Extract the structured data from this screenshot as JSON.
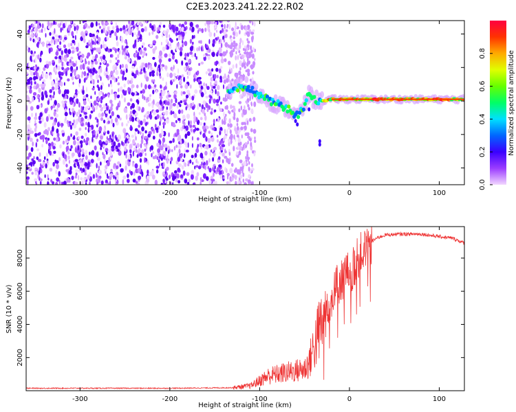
{
  "figure_title": "C2E3.2023.241.22.22.R02",
  "chart_data": [
    {
      "type": "heatmap",
      "title": "C2E3.2023.241.22.22.R02",
      "xlabel": "Height of straight line (km)",
      "ylabel": "Frequency (Hz)",
      "xlim": [
        -360,
        128
      ],
      "ylim": [
        -50,
        48
      ],
      "x_ticks": [
        -300,
        -200,
        -100,
        0,
        100
      ],
      "y_ticks": [
        -40,
        -20,
        0,
        20,
        40
      ],
      "noise_region": {
        "x_range": [
          -360,
          -120
        ],
        "y_range": [
          -50,
          48
        ]
      },
      "signal_trace": {
        "x": [
          -135,
          -125,
          -115,
          -105,
          -95,
          -85,
          -75,
          -65,
          -58,
          -50,
          -45,
          -40,
          -30,
          -20,
          -10,
          0,
          20,
          50,
          80,
          100,
          128
        ],
        "y": [
          6,
          8,
          9,
          5,
          2,
          -1,
          -3,
          -6,
          -9,
          -3,
          4,
          1,
          0,
          1,
          1,
          1,
          1,
          1,
          1,
          1,
          1
        ]
      },
      "colorbar": {
        "label": "Normalized spectral amplitude",
        "range": [
          0.0,
          1.0
        ],
        "ticks": [
          0.0,
          0.2,
          0.4,
          0.6,
          0.8
        ],
        "colors": [
          "#f2d6ff",
          "#9b3dff",
          "#3a00ff",
          "#0066ff",
          "#00e0ff",
          "#00ff66",
          "#66ff00",
          "#e0ff00",
          "#ffaa00",
          "#ff3300",
          "#ff0040"
        ]
      }
    },
    {
      "type": "line",
      "xlabel": "Height of straight line (km)",
      "ylabel": "SNR (10 * v/v)",
      "xlim": [
        -360,
        128
      ],
      "ylim": [
        0,
        9900
      ],
      "x_ticks": [
        -300,
        -200,
        -100,
        0,
        100
      ],
      "y_ticks": [
        2000,
        4000,
        6000,
        8000
      ],
      "color": "#ee3333",
      "series": {
        "x": [
          -360,
          -300,
          -200,
          -130,
          -110,
          -100,
          -90,
          -80,
          -70,
          -60,
          -50,
          -45,
          -40,
          -35,
          -30,
          -25,
          -20,
          -15,
          -10,
          -5,
          0,
          5,
          10,
          20,
          30,
          40,
          60,
          80,
          100,
          115,
          128
        ],
        "y": [
          150,
          150,
          150,
          180,
          300,
          600,
          900,
          1000,
          1100,
          1200,
          1300,
          1700,
          2600,
          3400,
          4300,
          5100,
          5600,
          6200,
          6600,
          7000,
          7200,
          7400,
          8100,
          8800,
          9200,
          9400,
          9450,
          9450,
          9300,
          9200,
          8900
        ]
      }
    }
  ]
}
